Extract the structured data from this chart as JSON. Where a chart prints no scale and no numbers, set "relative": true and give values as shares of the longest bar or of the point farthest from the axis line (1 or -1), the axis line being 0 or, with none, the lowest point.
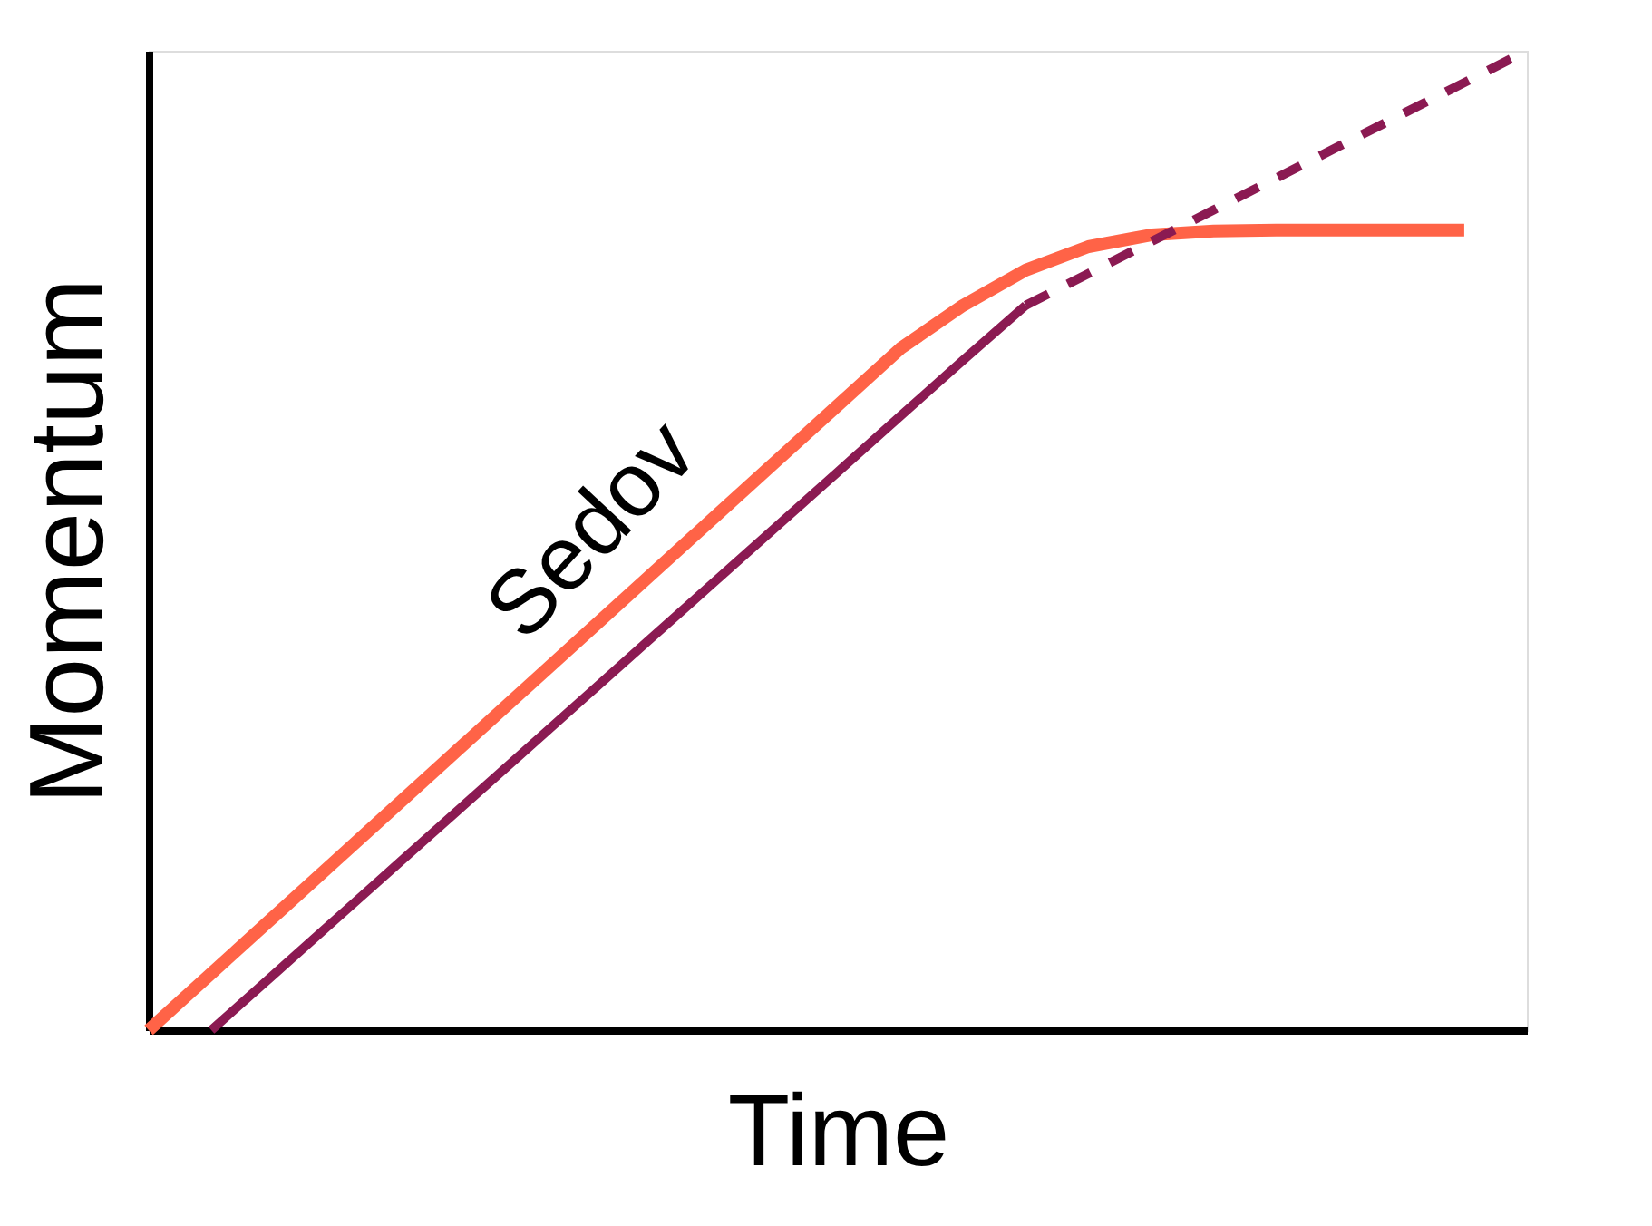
{
  "chart_data": {
    "type": "line",
    "relative": true,
    "xlabel": "Time",
    "ylabel": "Momentum",
    "categories": [
      null,
      null,
      null,
      null,
      null,
      null,
      null,
      null,
      null,
      null,
      null,
      null,
      null,
      null,
      null,
      null,
      null,
      null,
      null,
      null,
      null,
      null,
      null
    ],
    "series": [
      {
        "color": "#ff6347",
        "values": [
          0,
          0.058,
          0.116,
          0.174,
          0.232,
          0.29,
          0.348,
          0.406,
          0.464,
          0.522,
          0.58,
          0.638,
          0.696,
          0.74,
          0.776,
          0.8,
          0.812,
          0.816,
          0.817,
          0.817,
          0.817,
          0.817,
          null
        ]
      },
      {
        "color": "#8b1a52",
        "values": [
          null,
          0,
          0.057,
          0.114,
          0.171,
          0.228,
          0.285,
          0.342,
          0.399,
          0.456,
          0.513,
          0.57,
          0.627,
          0.684,
          0.74,
          null,
          null,
          null,
          null,
          null,
          null,
          null,
          null
        ]
      },
      {
        "color": "#8b1a52",
        "line_style": "dashed",
        "values": [
          null,
          null,
          null,
          null,
          null,
          null,
          null,
          null,
          null,
          null,
          null,
          null,
          null,
          null,
          0.74,
          0.7725,
          0.805,
          0.8375,
          0.87,
          0.9025,
          0.935,
          0.9675,
          1.0
        ]
      }
    ],
    "annotations": [
      "Sedov"
    ]
  }
}
